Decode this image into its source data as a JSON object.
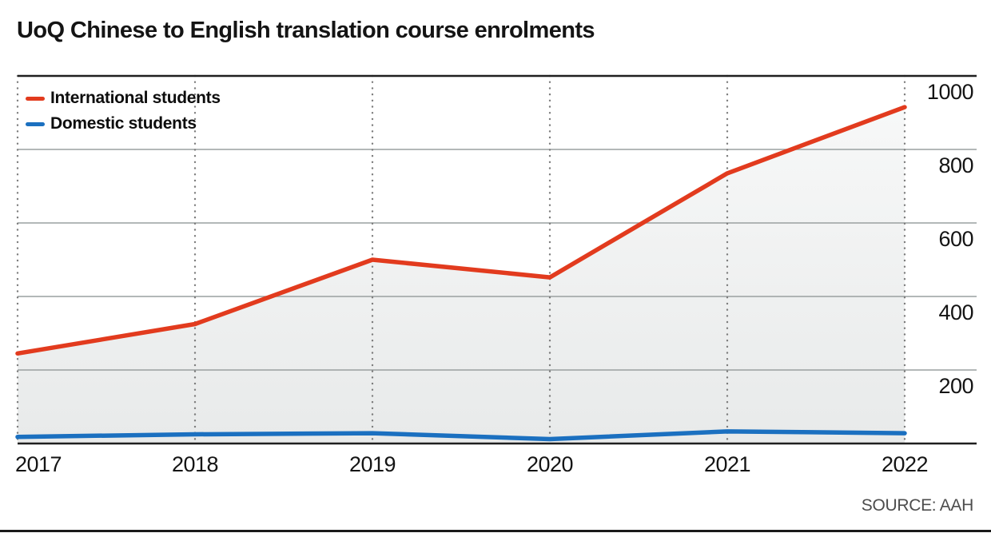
{
  "chart": {
    "title": "UoQ Chinese to English translation course enrolments",
    "source": "SOURCE: AAH"
  },
  "chart_data": {
    "type": "line",
    "title": "UoQ Chinese to English translation course enrolments",
    "x": [
      "2017",
      "2018",
      "2019",
      "2020",
      "2021",
      "2022"
    ],
    "series": [
      {
        "name": "International students",
        "values": [
          245,
          325,
          500,
          452,
          735,
          915
        ],
        "area_fill": true
      },
      {
        "name": "Domestic students",
        "values": [
          18,
          25,
          28,
          12,
          33,
          28
        ]
      }
    ],
    "xlabel": "",
    "ylabel": "",
    "ylim": [
      0,
      1000
    ],
    "yticks": [
      200,
      400,
      600,
      800,
      1000
    ],
    "grid": {
      "horizontal": true,
      "vertical": "dotted"
    },
    "legend_position": "top-left",
    "source": "SOURCE: AAH",
    "colors": {
      "international": "#e23b1e",
      "domestic": "#1b70c0",
      "grid_line": "#9aa0a0",
      "dotted_line": "#7d7d7d",
      "axis_line": "#1f1f1f",
      "area_fill_top": "#f7f8f8",
      "area_fill_bottom": "#e8eaea",
      "text": "#141414",
      "source_text": "#4d4d4d"
    }
  }
}
